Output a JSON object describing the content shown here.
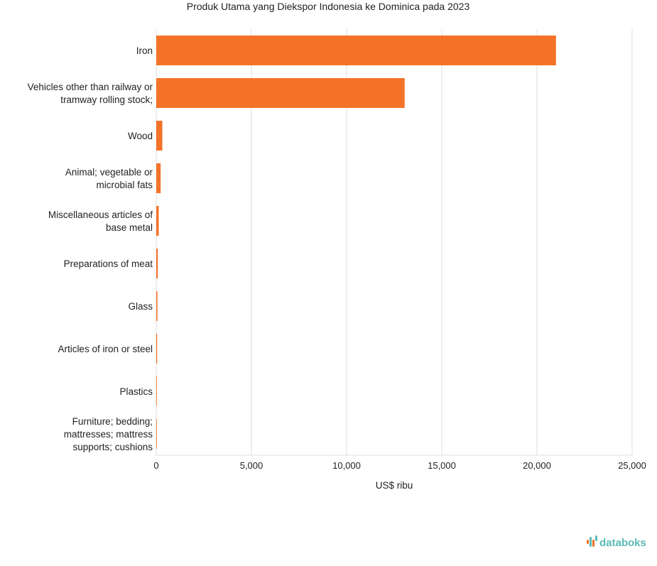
{
  "chart_data": {
    "type": "bar",
    "orientation": "horizontal",
    "title": "Produk Utama yang Diekspor Indonesia ke Dominica pada 2023",
    "xlabel": "US$ ribu",
    "ylabel": "",
    "xlim": [
      0,
      25000
    ],
    "xticks": [
      0,
      5000,
      10000,
      15000,
      20000,
      25000
    ],
    "xtick_labels": [
      "0",
      "5,000",
      "10,000",
      "15,000",
      "20,000",
      "25,000"
    ],
    "grid": true,
    "bar_color": "#f47329",
    "categories": [
      [
        "Iron"
      ],
      [
        "Vehicles other than railway or",
        "tramway rolling stock;"
      ],
      [
        "Wood"
      ],
      [
        "Animal; vegetable or",
        "microbial fats"
      ],
      [
        "Miscellaneous articles of",
        "base metal"
      ],
      [
        "Preparations of meat"
      ],
      [
        "Glass"
      ],
      [
        "Articles of iron or steel"
      ],
      [
        "Plastics"
      ],
      [
        "Furniture; bedding;",
        "mattresses; mattress",
        "supports; cushions"
      ]
    ],
    "values": [
      21000,
      13050,
      320,
      230,
      130,
      80,
      60,
      45,
      25,
      10
    ]
  },
  "branding": {
    "name": "databoks",
    "icon": "databoks-logo-icon",
    "color": "#5bbab5",
    "accent": "#f47329"
  }
}
